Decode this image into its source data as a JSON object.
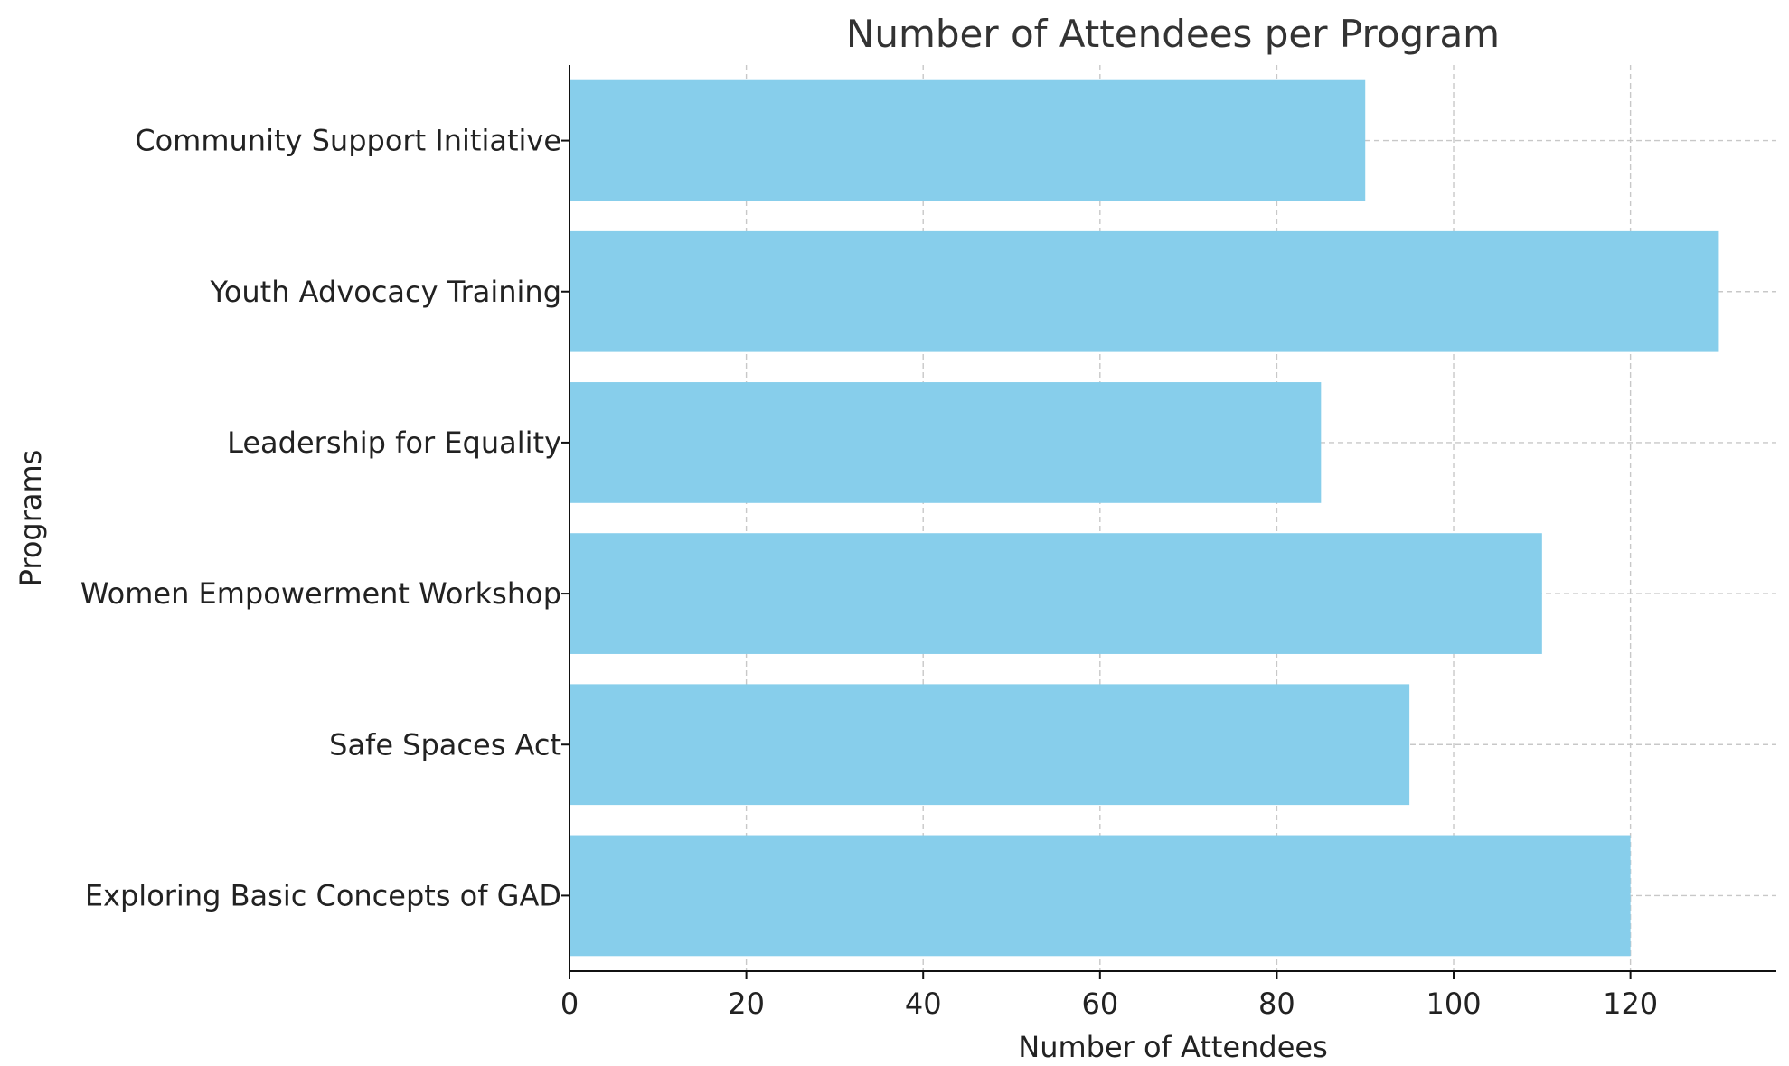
{
  "chart_data": {
    "type": "bar",
    "orientation": "horizontal",
    "title": "Number of Attendees per Program",
    "xlabel": "Number of Attendees",
    "ylabel": "Programs",
    "categories": [
      "Exploring Basic Concepts of GAD",
      "Safe Spaces Act",
      "Women Empowerment Workshop",
      "Leadership for Equality",
      "Youth Advocacy Training",
      "Community Support Initiative"
    ],
    "values": [
      120,
      95,
      110,
      85,
      130,
      90
    ],
    "xlim": [
      0,
      136.5
    ],
    "xticks": [
      0,
      20,
      40,
      60,
      80,
      100,
      120
    ],
    "grid": true,
    "bar_color": "#87CEEB"
  }
}
